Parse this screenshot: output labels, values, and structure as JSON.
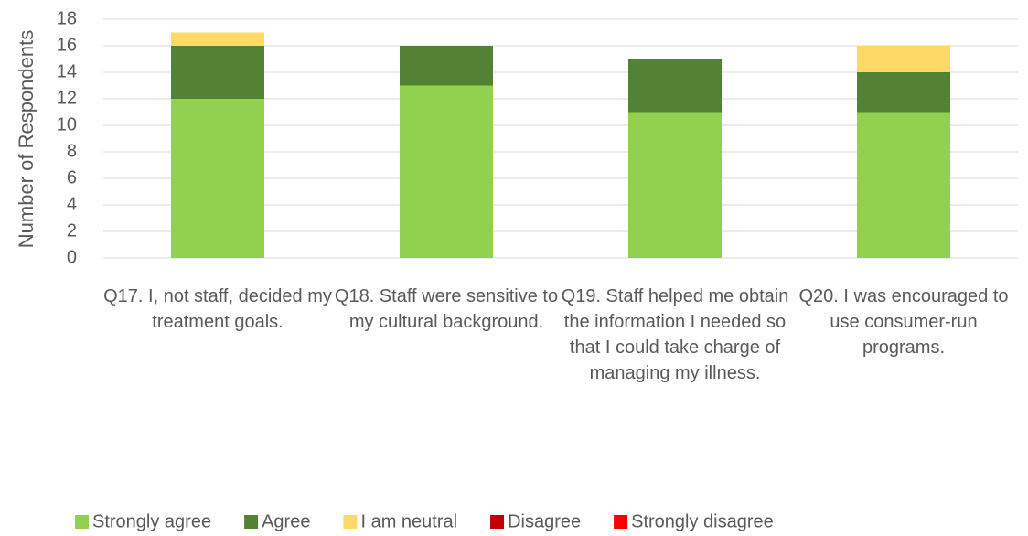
{
  "chart_data": {
    "type": "stacked_bar",
    "y_label": "Number of Respondents",
    "categories": [
      "Q17. I, not staff, decided my treatment goals.",
      "Q18. Staff were sensitive to my cultural background.",
      "Q19. Staff helped me obtain the information I needed so that I could take charge of managing my illness.",
      "Q20. I was encouraged to use consumer-run programs."
    ],
    "series": [
      {
        "name": "Strongly agree",
        "color": "#92d050",
        "values": [
          12,
          13,
          11,
          11
        ]
      },
      {
        "name": "Agree",
        "color": "#548235",
        "values": [
          4,
          3,
          4,
          3
        ]
      },
      {
        "name": "I am neutral",
        "color": "#ffd966",
        "values": [
          1,
          0,
          0,
          2
        ]
      },
      {
        "name": "Disagree",
        "color": "#c00000",
        "values": [
          0,
          0,
          0,
          0
        ]
      },
      {
        "name": "Strongly disagree",
        "color": "#ff0000",
        "values": [
          0,
          0,
          0,
          0
        ]
      }
    ],
    "ylim": [
      0,
      18
    ],
    "yticks": [
      0,
      2,
      4,
      6,
      8,
      10,
      12,
      14,
      16,
      18
    ],
    "grid": true,
    "legend": "bottom"
  }
}
